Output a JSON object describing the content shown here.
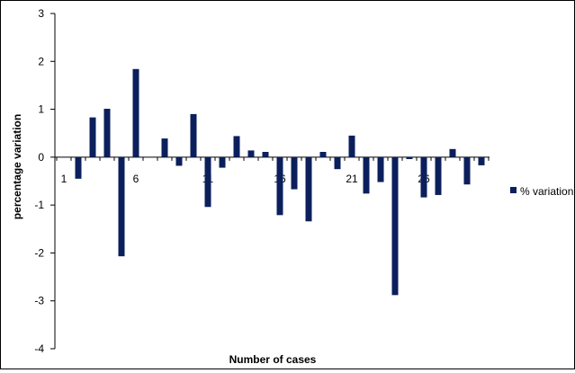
{
  "chart_data": {
    "type": "bar",
    "title": "",
    "xlabel": "Number of cases",
    "ylabel": "percentage variation",
    "ylim": [
      -4,
      3
    ],
    "y_ticks": [
      3,
      2,
      1,
      0,
      -1,
      -2,
      -3,
      -4
    ],
    "x_tick_labels": [
      {
        "case": 1,
        "label": "1"
      },
      {
        "case": 6,
        "label": "6"
      },
      {
        "case": 11,
        "label": "11"
      },
      {
        "case": 16,
        "label": "16"
      },
      {
        "case": 21,
        "label": "21"
      },
      {
        "case": 26,
        "label": "26"
      }
    ],
    "legend": {
      "position": "right"
    },
    "series": [
      {
        "name": "% variation",
        "color": "#0b1f5c",
        "x": [
          1,
          2,
          3,
          4,
          5,
          6,
          7,
          8,
          9,
          10,
          11,
          12,
          13,
          14,
          15,
          16,
          17,
          18,
          19,
          20,
          21,
          22,
          23,
          24,
          25,
          26,
          27,
          28,
          29,
          30
        ],
        "values": [
          0.0,
          -0.45,
          0.83,
          1.01,
          -2.07,
          1.84,
          0.0,
          0.39,
          -0.18,
          0.9,
          -1.04,
          -0.22,
          0.44,
          0.14,
          0.11,
          -1.21,
          -0.67,
          -1.34,
          0.11,
          -0.25,
          0.45,
          -0.76,
          -0.52,
          -2.88,
          -0.04,
          -0.84,
          -0.79,
          0.17,
          -0.57,
          -0.17
        ]
      }
    ]
  }
}
